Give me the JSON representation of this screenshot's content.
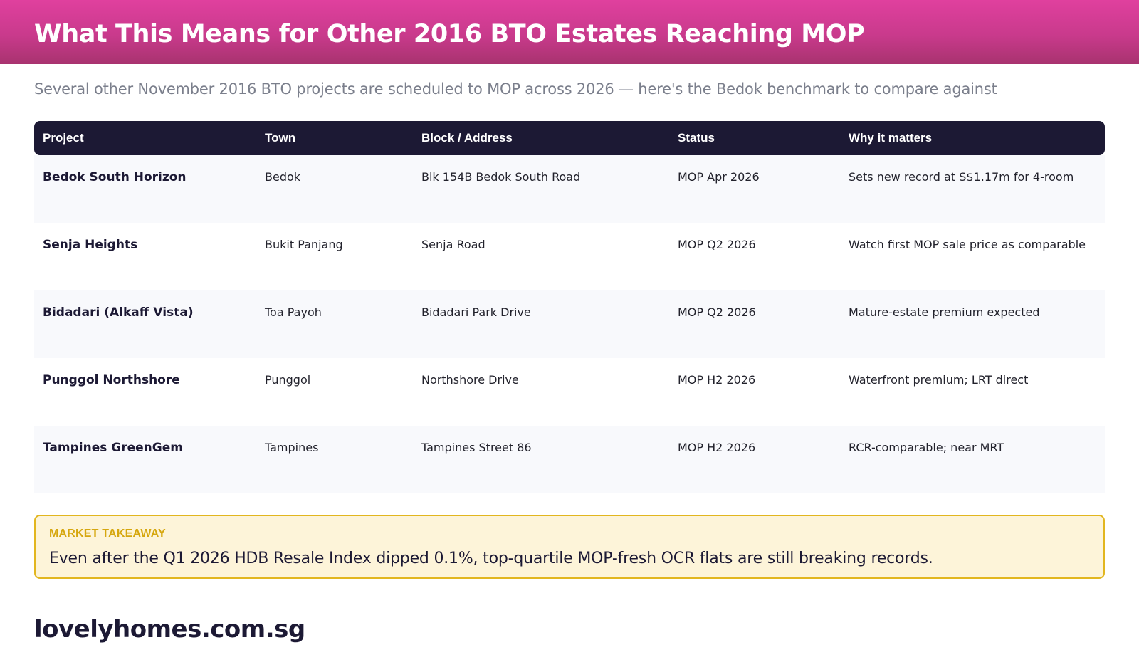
{
  "header": {
    "title": "What This Means for Other 2016 BTO Estates Reaching MOP"
  },
  "subtitle": "Several other November 2016 BTO projects are scheduled to MOP across 2026 — here's the Bedok benchmark to compare against",
  "table": {
    "columns": [
      "Project",
      "Town",
      "Block / Address",
      "Status",
      "Why it matters"
    ],
    "rows": [
      [
        "Bedok South Horizon",
        "Bedok",
        "Blk 154B Bedok South Road",
        "MOP Apr 2026",
        "Sets new record at S$1.17m for 4-room"
      ],
      [
        "Senja Heights",
        "Bukit Panjang",
        "Senja Road",
        "MOP Q2 2026",
        "Watch first MOP sale price as comparable"
      ],
      [
        "Bidadari (Alkaff Vista)",
        "Toa Payoh",
        "Bidadari Park Drive",
        "MOP Q2 2026",
        "Mature-estate premium expected"
      ],
      [
        "Punggol Northshore",
        "Punggol",
        "Northshore Drive",
        "MOP H2 2026",
        "Waterfront premium; LRT direct"
      ],
      [
        "Tampines GreenGem",
        "Tampines",
        "Tampines Street 86",
        "MOP H2 2026",
        "RCR-comparable; near MRT"
      ]
    ]
  },
  "takeaway": {
    "label": "MARKET TAKEAWAY",
    "text": "Even after the Q1 2026 HDB Resale Index dipped 0.1%, top-quartile MOP-fresh OCR flats are still breaking records."
  },
  "brand": "lovelyhomes.com.sg",
  "colors": {
    "header_gradient_top": "#e0409e",
    "header_gradient_bottom": "#a8336f",
    "table_header_bg": "#1c1934",
    "takeaway_bg": "#fdf4d9",
    "takeaway_border": "#e2b61f",
    "takeaway_label": "#d6a70f"
  }
}
